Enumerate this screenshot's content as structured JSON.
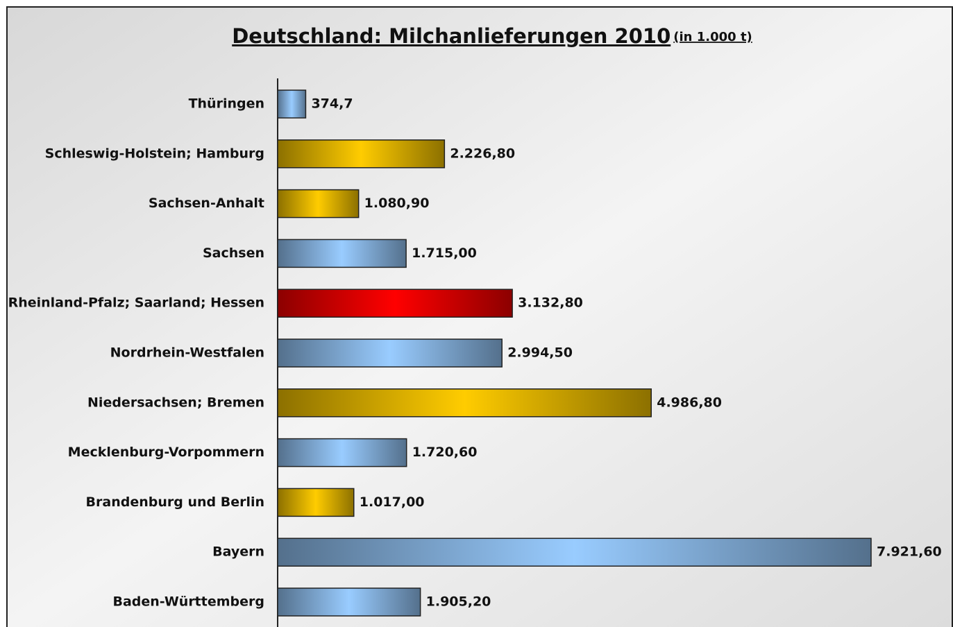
{
  "chart_data": {
    "type": "bar",
    "orientation": "horizontal",
    "title": "Deutschland: Milchanlieferungen 2010",
    "subtitle": "(in 1.000 t)",
    "categories": [
      "Thüringen",
      "Schleswig-Holstein; Hamburg",
      "Sachsen-Anhalt",
      "Sachsen",
      "Rheinland-Pfalz; Saarland; Hessen",
      "Nordrhein-Westfalen",
      "Niedersachsen; Bremen",
      "Mecklenburg-Vorpommern",
      "Brandenburg und Berlin",
      "Bayern",
      "Baden-Württemberg"
    ],
    "values": [
      374.7,
      2226.8,
      1080.9,
      1715.0,
      3132.8,
      2994.5,
      4986.8,
      1720.6,
      1017.0,
      7921.6,
      1905.2
    ],
    "value_labels": [
      "374,7",
      "2.226,80",
      "1.080,90",
      "1.715,00",
      "3.132,80",
      "2.994,50",
      "4.986,80",
      "1.720,60",
      "1.017,00",
      "7.921,60",
      "1.905,20"
    ],
    "colors": [
      "#99ccff",
      "#ffcc00",
      "#ffcc00",
      "#99ccff",
      "#ff0000",
      "#99ccff",
      "#ffcc00",
      "#99ccff",
      "#ffcc00",
      "#99ccff",
      "#99ccff"
    ]
  }
}
